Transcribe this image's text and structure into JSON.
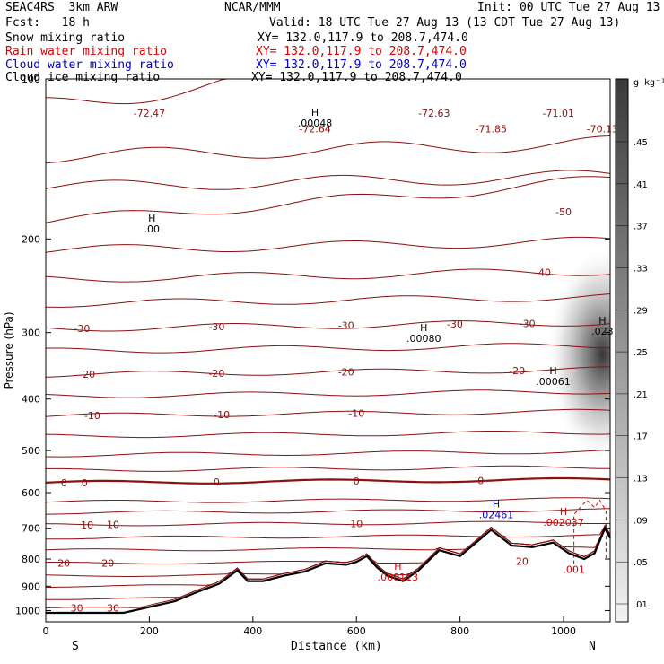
{
  "header": {
    "model": "SEAC4RS  3km ARW",
    "org": "NCAR/MMM",
    "init": "Init: 00 UTC Tue 27 Aug 13",
    "fcst": "Fcst:   18 h",
    "valid": "Valid: 18 UTC Tue 27 Aug 13 (13 CDT Tue 27 Aug 13)",
    "fields": [
      {
        "label": "Snow mixing ratio",
        "xy": "XY= 132.0,117.9 to 208.7,474.0",
        "color": "#000000"
      },
      {
        "label": "Rain water mixing ratio",
        "xy": "XY= 132.0,117.9 to 208.7,474.0",
        "color": "#dd0000"
      },
      {
        "label": "Cloud water mixing ratio",
        "xy": "XY= 132.0,117.9 to 208.7,474.0",
        "color": "#0000cc"
      },
      {
        "label": "Cloud ice mixing ratio",
        "xy": "XY= 132.0,117.9 to 208.7,474.0",
        "color": "#000000"
      }
    ]
  },
  "chart_data": {
    "type": "cross-section",
    "xlabel": "Distance (km)",
    "ylabel": "Pressure (hPa)",
    "xlim": [
      0,
      1090
    ],
    "ylim": [
      1050,
      100
    ],
    "x_ticks": [
      0,
      200,
      400,
      600,
      800,
      1000
    ],
    "y_ticks": [
      100,
      200,
      300,
      400,
      500,
      600,
      700,
      800,
      900,
      1000
    ],
    "direction_labels": {
      "left": "S",
      "right": "N"
    },
    "colorbar": {
      "unit": "g kg⁻¹",
      "ticks": [
        ".45",
        ".41",
        ".37",
        ".33",
        ".29",
        ".25",
        ".21",
        ".17",
        ".13",
        ".09",
        ".05",
        ".01"
      ]
    },
    "temperature_isotherms": [
      {
        "value": -72,
        "labels": [
          "-72.47",
          "-72.64",
          "-72.63",
          "-71.85",
          "-71.01",
          "-70.13"
        ]
      },
      {
        "value": -50,
        "labels": [
          "-50"
        ]
      },
      {
        "value": -40,
        "labels": [
          "-40"
        ]
      },
      {
        "value": -30,
        "labels": [
          "-30",
          "-30",
          "-30",
          "-30",
          "-30"
        ]
      },
      {
        "value": -20,
        "labels": [
          "-20",
          "-20",
          "-20",
          "-20"
        ]
      },
      {
        "value": -10,
        "labels": [
          "-10",
          "-10",
          "-10"
        ]
      },
      {
        "value": 0,
        "labels": [
          "0",
          "0",
          "0",
          "0",
          "0"
        ]
      },
      {
        "value": 10,
        "labels": [
          "10",
          "10",
          "10"
        ]
      },
      {
        "value": 20,
        "labels": [
          "20",
          "20",
          "20"
        ]
      },
      {
        "value": 30,
        "labels": [
          "30",
          "30"
        ]
      }
    ],
    "annotations": [
      {
        "mark": "H",
        "value": ".00",
        "x": 205,
        "p": 190,
        "color": "#000000"
      },
      {
        "mark": "H",
        "value": ".00048",
        "x": 520,
        "p": 120,
        "color": "#000000"
      },
      {
        "mark": "H",
        "value": ".00080",
        "x": 730,
        "p": 305,
        "color": "#000000"
      },
      {
        "mark": "H",
        "value": ".00061",
        "x": 980,
        "p": 368,
        "color": "#000000"
      },
      {
        "mark": "H",
        "value": ".023",
        "x": 1075,
        "p": 296,
        "color": "#000000"
      },
      {
        "mark": "H",
        "value": ".02461",
        "x": 870,
        "p": 655,
        "color": "#0000cc"
      },
      {
        "mark": "H",
        "value": ".002037",
        "x": 1000,
        "p": 677,
        "color": "#dd0000"
      },
      {
        "mark": "H",
        "value": ".000113",
        "x": 680,
        "p": 858,
        "color": "#dd0000"
      },
      {
        "mark": "",
        "value": ".001",
        "x": 1020,
        "p": 830,
        "color": "#dd0000"
      }
    ],
    "terrain_surface_hpa": [
      [
        0,
        1010
      ],
      [
        150,
        1010
      ],
      [
        200,
        985
      ],
      [
        250,
        960
      ],
      [
        290,
        925
      ],
      [
        335,
        890
      ],
      [
        370,
        840
      ],
      [
        390,
        880
      ],
      [
        420,
        880
      ],
      [
        460,
        860
      ],
      [
        500,
        845
      ],
      [
        540,
        815
      ],
      [
        580,
        820
      ],
      [
        600,
        810
      ],
      [
        620,
        790
      ],
      [
        640,
        830
      ],
      [
        660,
        860
      ],
      [
        690,
        880
      ],
      [
        720,
        840
      ],
      [
        760,
        770
      ],
      [
        800,
        790
      ],
      [
        860,
        705
      ],
      [
        900,
        755
      ],
      [
        940,
        760
      ],
      [
        980,
        745
      ],
      [
        1010,
        780
      ],
      [
        1040,
        800
      ],
      [
        1060,
        780
      ],
      [
        1080,
        700
      ],
      [
        1090,
        730
      ]
    ],
    "snow_shading": {
      "center_x": 1075,
      "center_p": 330,
      "max": 0.45,
      "min_shown": 0.01
    }
  }
}
